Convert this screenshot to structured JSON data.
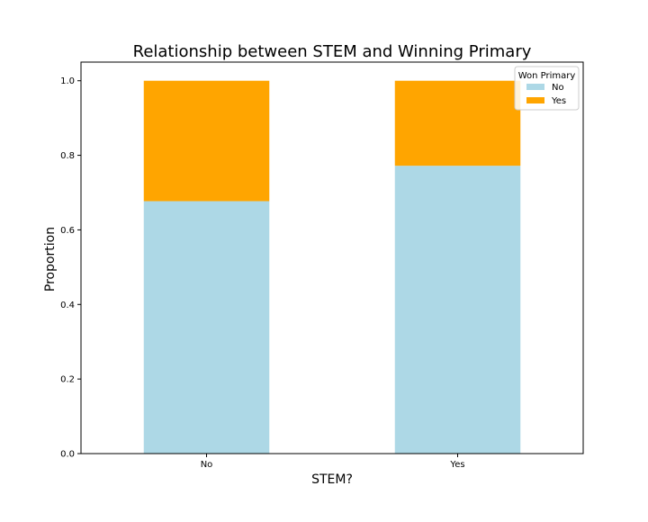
{
  "chart_data": {
    "type": "bar",
    "stacked": true,
    "title": "Relationship between STEM and Winning Primary",
    "xlabel": "STEM?",
    "ylabel": "Proportion",
    "categories": [
      "No",
      "Yes"
    ],
    "series": [
      {
        "name": "No",
        "values": [
          0.677,
          0.772
        ],
        "color": "#add8e6"
      },
      {
        "name": "Yes",
        "values": [
          0.323,
          0.228
        ],
        "color": "#ffa500"
      }
    ],
    "ylim": [
      0,
      1.05
    ],
    "yticks": [
      "0.0",
      "0.2",
      "0.4",
      "0.6",
      "0.8",
      "1.0"
    ],
    "grid": false,
    "legend": {
      "title": "Won Primary",
      "position": "top-right"
    }
  }
}
